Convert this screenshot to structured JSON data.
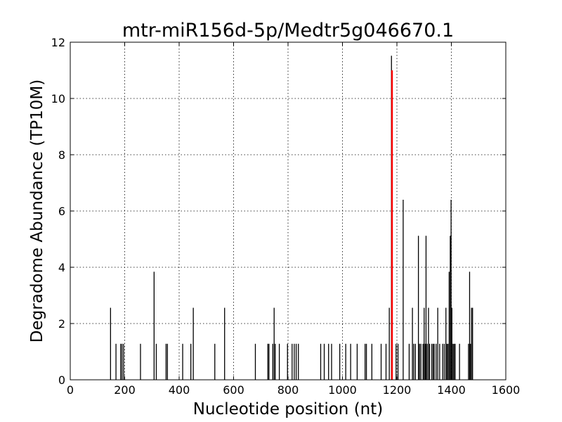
{
  "chart_data": {
    "type": "bar",
    "title": "mtr-miR156d-5p/Medtr5g046670.1",
    "xlabel": "Nucleotide position (nt)",
    "ylabel": "Degradome Abundance (TP10M)",
    "xlim": [
      0,
      1600
    ],
    "ylim": [
      0,
      12
    ],
    "xticks": [
      0,
      200,
      400,
      600,
      800,
      1000,
      1200,
      1400,
      1600
    ],
    "yticks": [
      0,
      2,
      4,
      6,
      8,
      10,
      12
    ],
    "grid": true,
    "series": [
      {
        "color": "#000000",
        "points": [
          [
            148,
            2.56
          ],
          [
            168,
            1.28
          ],
          [
            185,
            1.28
          ],
          [
            190,
            1.28
          ],
          [
            196,
            1.28
          ],
          [
            258,
            1.28
          ],
          [
            308,
            3.84
          ],
          [
            316,
            1.28
          ],
          [
            352,
            1.28
          ],
          [
            357,
            1.28
          ],
          [
            413,
            1.28
          ],
          [
            443,
            1.28
          ],
          [
            452,
            2.56
          ],
          [
            531,
            1.28
          ],
          [
            567,
            2.56
          ],
          [
            680,
            1.28
          ],
          [
            726,
            1.28
          ],
          [
            730,
            1.28
          ],
          [
            744,
            1.28
          ],
          [
            749,
            2.56
          ],
          [
            753,
            1.28
          ],
          [
            768,
            1.28
          ],
          [
            798,
            1.28
          ],
          [
            815,
            1.28
          ],
          [
            823,
            1.28
          ],
          [
            830,
            1.28
          ],
          [
            838,
            1.28
          ],
          [
            920,
            1.28
          ],
          [
            933,
            1.28
          ],
          [
            949,
            1.28
          ],
          [
            960,
            1.28
          ],
          [
            990,
            1.28
          ],
          [
            1012,
            1.28
          ],
          [
            1030,
            1.28
          ],
          [
            1054,
            1.28
          ],
          [
            1083,
            1.28
          ],
          [
            1088,
            1.28
          ],
          [
            1108,
            1.28
          ],
          [
            1142,
            1.28
          ],
          [
            1160,
            1.28
          ],
          [
            1172,
            2.56
          ],
          [
            1180,
            11.52
          ],
          [
            1197,
            1.28
          ],
          [
            1204,
            1.28
          ],
          [
            1223,
            6.4
          ],
          [
            1245,
            1.28
          ],
          [
            1257,
            2.56
          ],
          [
            1262,
            1.28
          ],
          [
            1268,
            1.28
          ],
          [
            1279,
            5.12
          ],
          [
            1283,
            1.28
          ],
          [
            1288,
            1.28
          ],
          [
            1296,
            1.28
          ],
          [
            1300,
            2.56
          ],
          [
            1304,
            1.28
          ],
          [
            1307,
            5.12
          ],
          [
            1311,
            1.28
          ],
          [
            1316,
            2.56
          ],
          [
            1320,
            1.28
          ],
          [
            1328,
            1.28
          ],
          [
            1333,
            1.28
          ],
          [
            1337,
            1.28
          ],
          [
            1344,
            1.28
          ],
          [
            1350,
            2.56
          ],
          [
            1357,
            1.28
          ],
          [
            1368,
            1.28
          ],
          [
            1374,
            1.28
          ],
          [
            1380,
            2.56
          ],
          [
            1384,
            1.28
          ],
          [
            1388,
            1.28
          ],
          [
            1392,
            3.84
          ],
          [
            1396,
            5.12
          ],
          [
            1399,
            6.4
          ],
          [
            1402,
            2.56
          ],
          [
            1406,
            1.28
          ],
          [
            1410,
            1.28
          ],
          [
            1414,
            1.28
          ],
          [
            1430,
            1.28
          ],
          [
            1463,
            1.28
          ],
          [
            1467,
            3.84
          ],
          [
            1470,
            1.28
          ],
          [
            1474,
            2.56
          ],
          [
            1478,
            2.56
          ]
        ]
      },
      {
        "color": "#ff0000",
        "points": [
          [
            1182,
            11.0
          ]
        ]
      }
    ]
  }
}
